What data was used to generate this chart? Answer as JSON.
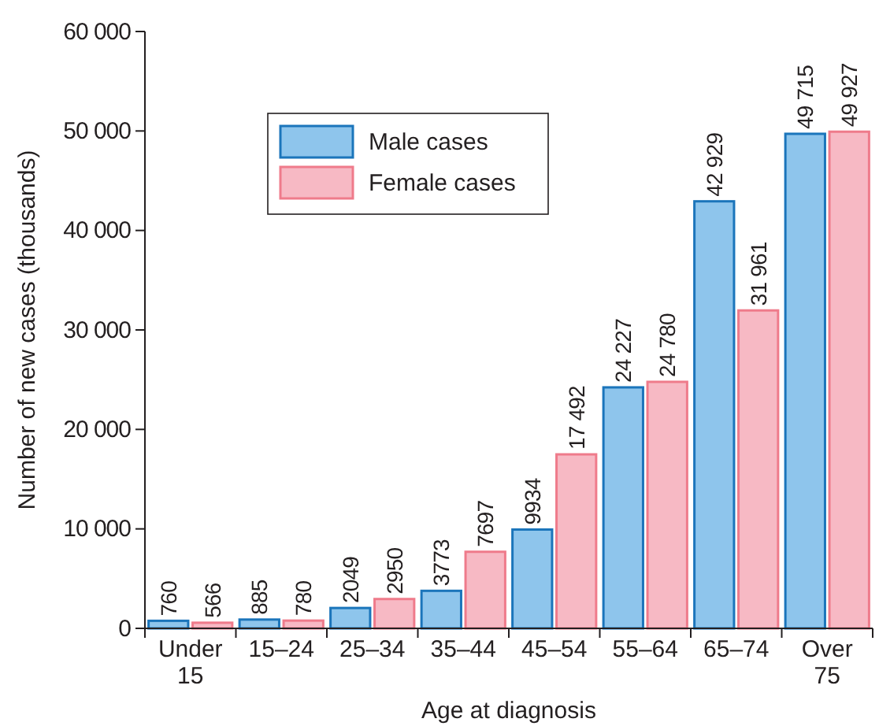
{
  "chart_data": {
    "type": "bar",
    "xlabel": "Age at diagnosis",
    "ylabel": "Number of new cases (thousands)",
    "categories": [
      "Under 15",
      "15–24",
      "25–34",
      "35–44",
      "45–54",
      "55–64",
      "65–74",
      "Over 75"
    ],
    "series": [
      {
        "name": "Male cases",
        "color": "#8ec5ec",
        "values": [
          760,
          885,
          2049,
          3773,
          9934,
          24227,
          42929,
          49715
        ],
        "value_labels": [
          "760",
          "885",
          "2049",
          "3773",
          "9934",
          "24 227",
          "42 929",
          "49 715"
        ]
      },
      {
        "name": "Female cases",
        "color": "#f7b9c4",
        "values": [
          566,
          780,
          2950,
          7697,
          17492,
          24780,
          31961,
          49927
        ],
        "value_labels": [
          "566",
          "780",
          "2950",
          "7697",
          "17 492",
          "24 780",
          "31 961",
          "49 927"
        ]
      }
    ],
    "ylim": [
      0,
      60000
    ],
    "yticks": [
      0,
      {
        "value": 10000,
        "label": "10 000"
      },
      {
        "value": 20000,
        "label": "20 000"
      },
      {
        "value": 30000,
        "label": "30 000"
      },
      {
        "value": 40000,
        "label": "40 000"
      },
      {
        "value": 50000,
        "label": "50 000"
      },
      {
        "value": 60000,
        "label": "60 000"
      }
    ],
    "legend": "top left",
    "grid": false
  }
}
